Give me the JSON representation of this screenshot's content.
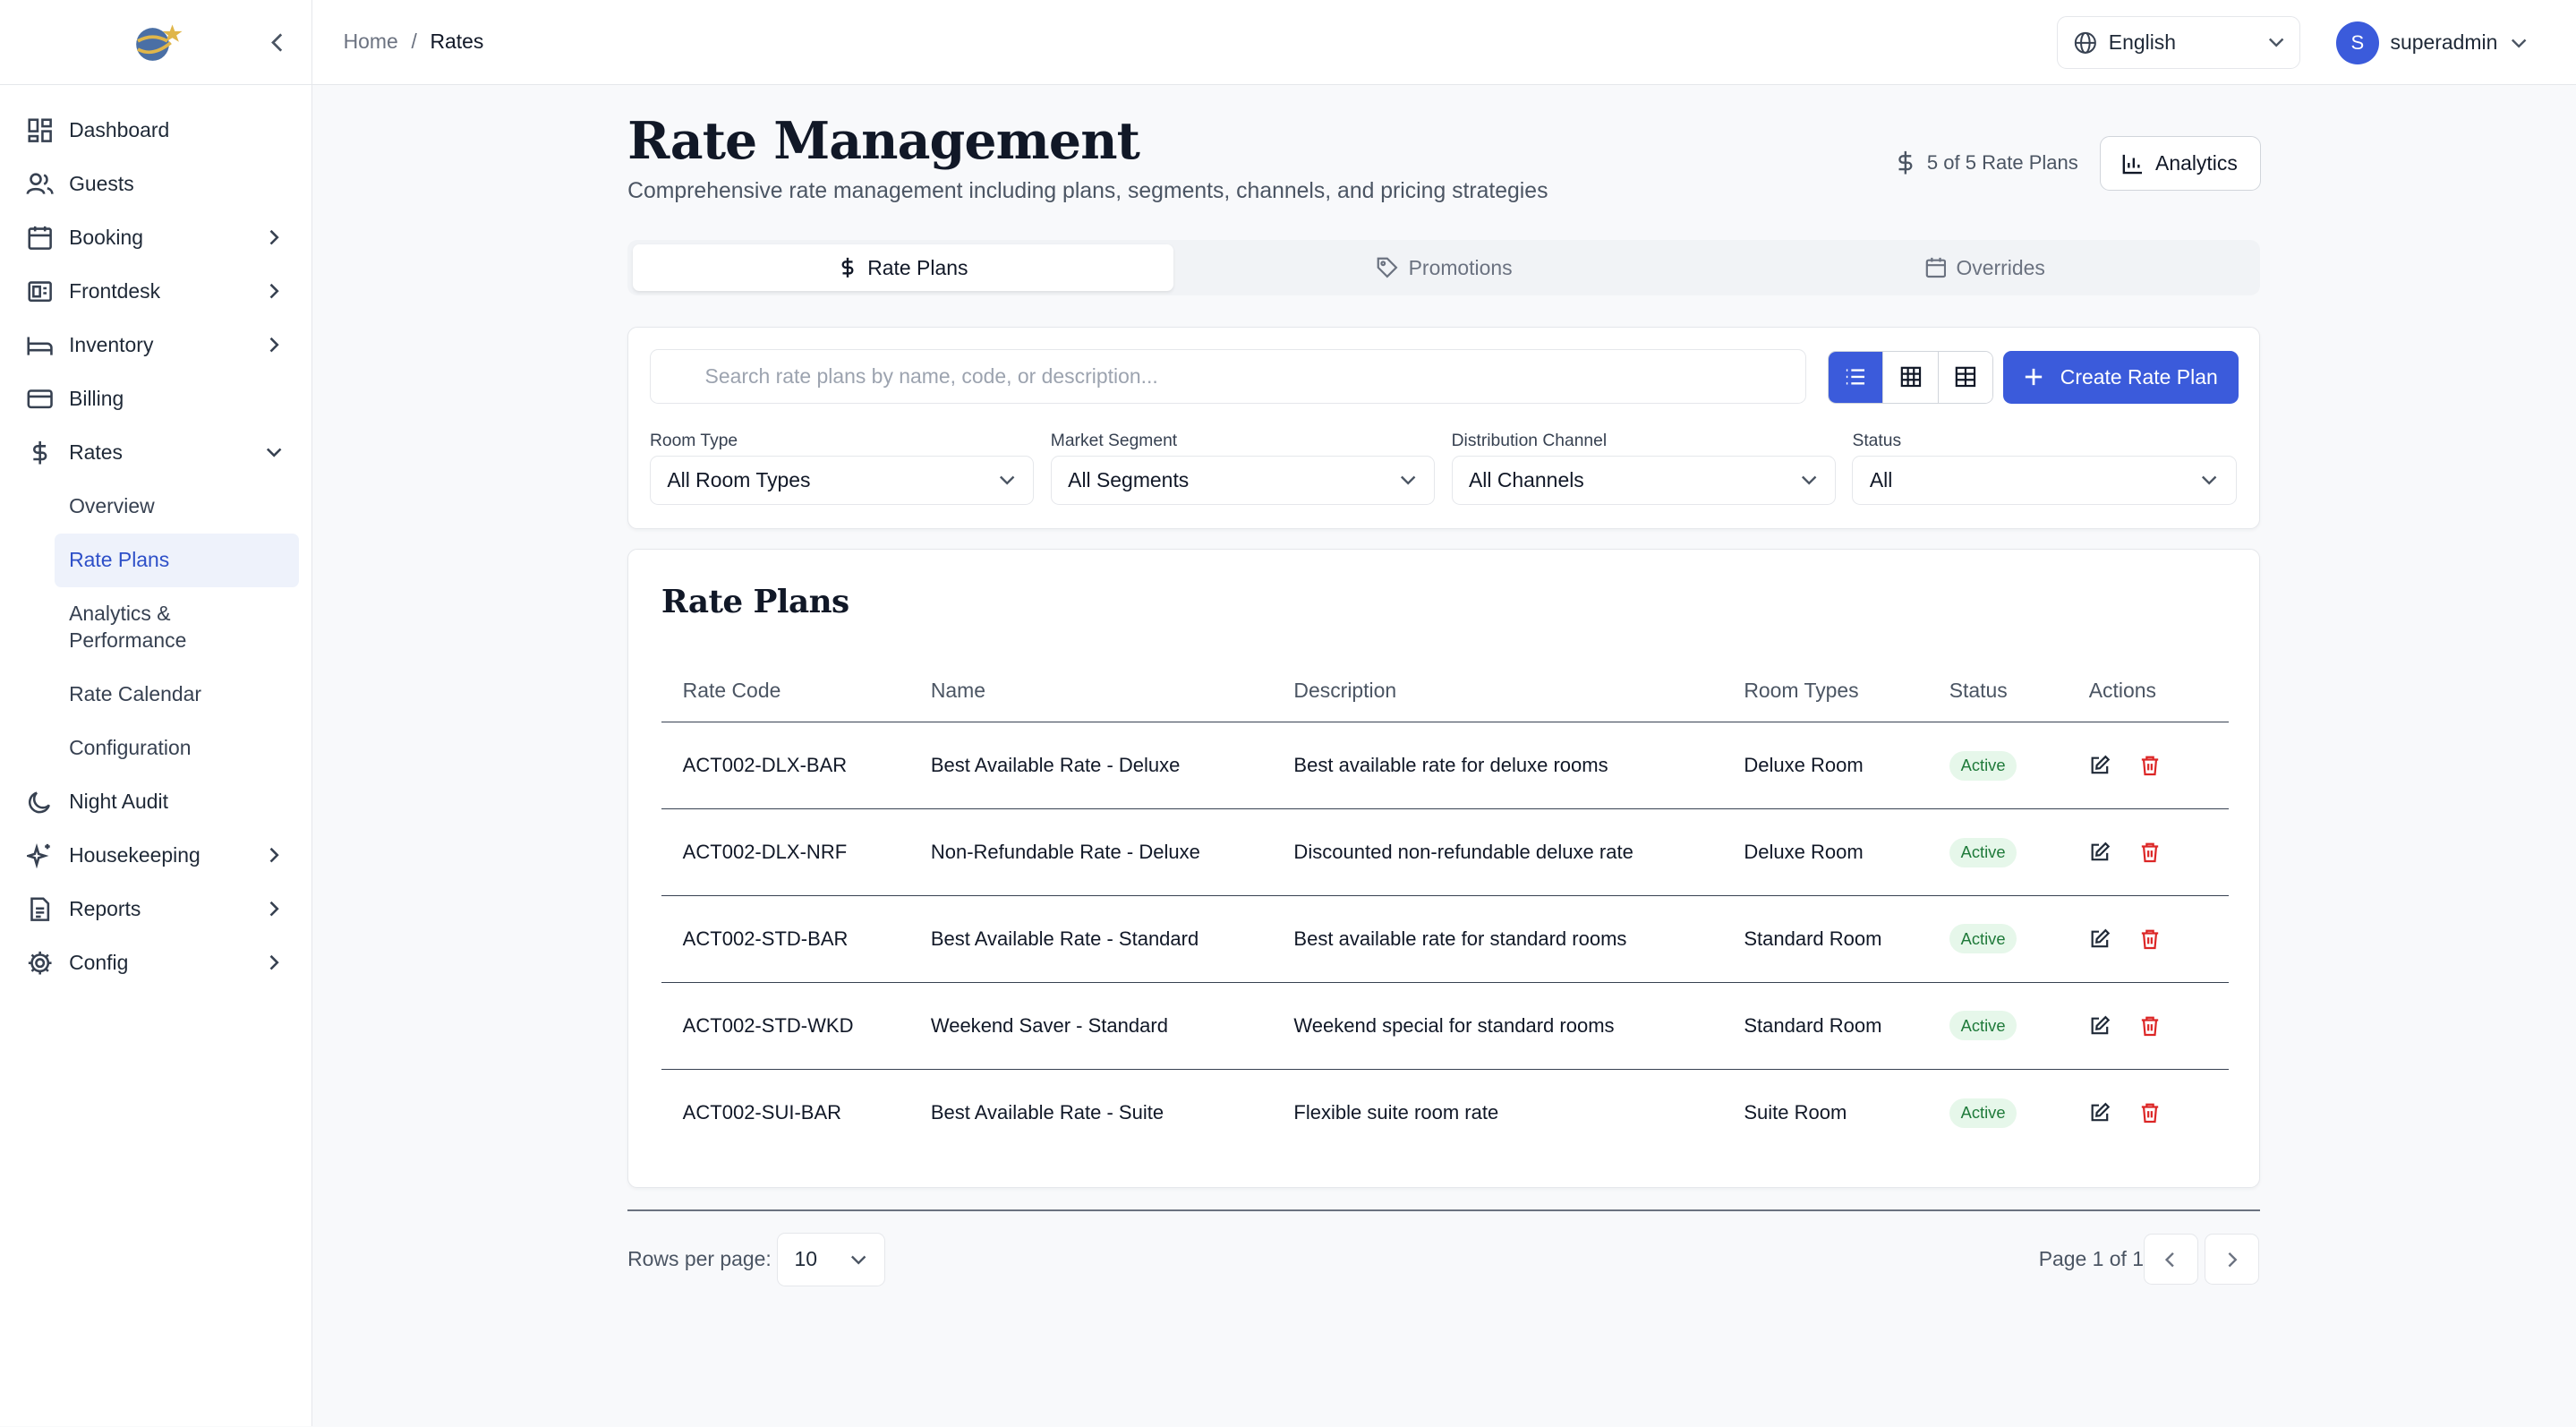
{
  "sidebar": {
    "items": [
      {
        "label": "Dashboard",
        "icon": "dashboard-icon"
      },
      {
        "label": "Guests",
        "icon": "users-icon"
      },
      {
        "label": "Booking",
        "icon": "calendar-icon"
      },
      {
        "label": "Frontdesk",
        "icon": "frontdesk-icon"
      },
      {
        "label": "Inventory",
        "icon": "bed-icon"
      },
      {
        "label": "Billing",
        "icon": "credit-card-icon"
      },
      {
        "label": "Rates",
        "icon": "dollar-icon"
      },
      {
        "label": "Night Audit",
        "icon": "moon-icon"
      },
      {
        "label": "Housekeeping",
        "icon": "sparkles-icon"
      },
      {
        "label": "Reports",
        "icon": "file-icon"
      },
      {
        "label": "Config",
        "icon": "gear-icon"
      }
    ],
    "rates_sub": [
      "Overview",
      "Rate Plans",
      "Analytics & Performance",
      "Rate Calendar",
      "Configuration"
    ]
  },
  "header": {
    "breadcrumb": {
      "home": "Home",
      "sep": "/",
      "current": "Rates"
    },
    "language": "English",
    "user": {
      "initial": "S",
      "name": "superadmin"
    }
  },
  "page": {
    "title": "Rate Management",
    "subtitle": "Comprehensive rate management including plans, segments, channels, and pricing strategies",
    "plan_count": "5 of 5 Rate Plans",
    "analytics_label": "Analytics"
  },
  "tabs": [
    "Rate Plans",
    "Promotions",
    "Overrides"
  ],
  "filters": {
    "search_placeholder": "Search rate plans by name, code, or description...",
    "create_label": "Create Rate Plan",
    "room_type": {
      "label": "Room Type",
      "value": "All Room Types"
    },
    "market_segment": {
      "label": "Market Segment",
      "value": "All Segments"
    },
    "distribution_channel": {
      "label": "Distribution Channel",
      "value": "All Channels"
    },
    "status": {
      "label": "Status",
      "value": "All"
    }
  },
  "table": {
    "title": "Rate Plans",
    "columns": [
      "Rate Code",
      "Name",
      "Description",
      "Room Types",
      "Status",
      "Actions"
    ],
    "rows": [
      {
        "code": "ACT002-DLX-BAR",
        "name": "Best Available Rate - Deluxe",
        "description": "Best available rate for deluxe rooms",
        "room": "Deluxe Room",
        "status": "Active"
      },
      {
        "code": "ACT002-DLX-NRF",
        "name": "Non-Refundable Rate - Deluxe",
        "description": "Discounted non-refundable deluxe rate",
        "room": "Deluxe Room",
        "status": "Active"
      },
      {
        "code": "ACT002-STD-BAR",
        "name": "Best Available Rate - Standard",
        "description": "Best available rate for standard rooms",
        "room": "Standard Room",
        "status": "Active"
      },
      {
        "code": "ACT002-STD-WKD",
        "name": "Weekend Saver - Standard",
        "description": "Weekend special for standard rooms",
        "room": "Standard Room",
        "status": "Active"
      },
      {
        "code": "ACT002-SUI-BAR",
        "name": "Best Available Rate - Suite",
        "description": "Flexible suite room rate",
        "room": "Suite Room",
        "status": "Active"
      }
    ]
  },
  "pagination": {
    "rows_label": "Rows per page:",
    "rows_value": "10",
    "page_info": "Page 1 of 1"
  },
  "colors": {
    "accent": "#3b5bdb",
    "active_badge_bg": "#e6f7ea",
    "active_badge_text": "#1f7a3a",
    "delete": "#dc2626"
  }
}
